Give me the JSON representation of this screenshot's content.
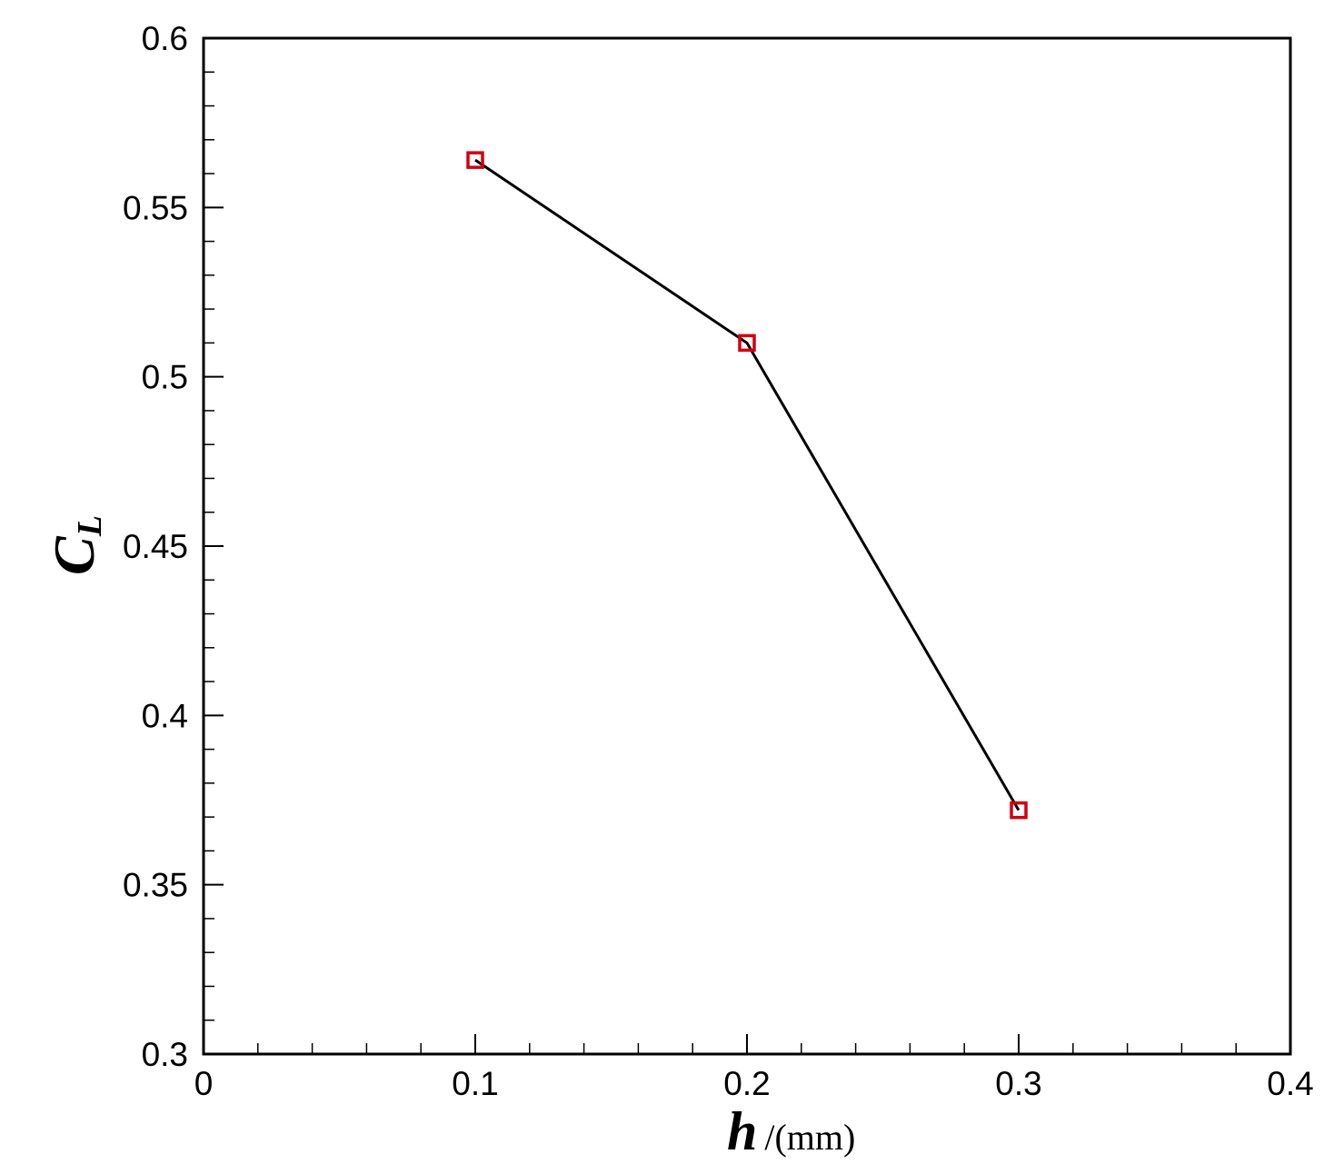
{
  "chart_data": {
    "type": "line",
    "title": "",
    "xlabel": {
      "symbol": "h",
      "unit": "/(mm)"
    },
    "ylabel": {
      "symbol": "C",
      "subscript": "L"
    },
    "xlim": [
      0,
      0.4
    ],
    "ylim": [
      0.3,
      0.6
    ],
    "xticks": [
      "0",
      "0.1",
      "0.2",
      "0.3",
      "0.4"
    ],
    "yticks": [
      "0.3",
      "0.35",
      "0.4",
      "0.45",
      "0.5",
      "0.55",
      "0.6"
    ],
    "grid": false,
    "legend": "none",
    "line_color": "#000000",
    "marker_color": "#d0000f",
    "marker": "square",
    "series": [
      {
        "x": [
          0.1,
          0.2,
          0.3
        ],
        "y": [
          0.564,
          0.51,
          0.372
        ]
      }
    ]
  }
}
